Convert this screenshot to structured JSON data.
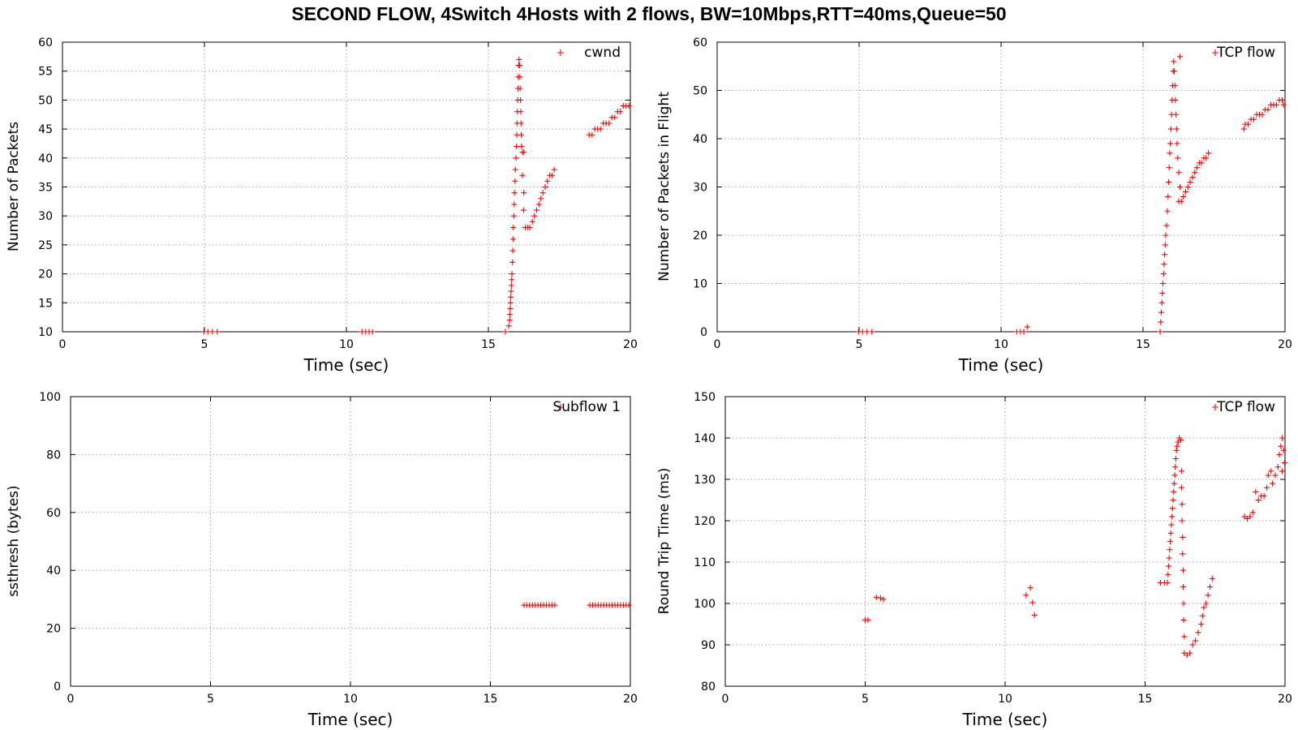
{
  "title": "SECOND FLOW, 4Switch 4Hosts with 2 flows, BW=10Mbps,RTT=40ms,Queue=50",
  "colors": {
    "series": "#ff0000",
    "grid": "#a0a0a0",
    "frame": "#000000"
  },
  "chart_data": [
    {
      "id": "cwnd",
      "type": "scatter",
      "title": "",
      "xlabel": "Time (sec)",
      "ylabel": "Number of Packets",
      "xlim": [
        0,
        20
      ],
      "ylim": [
        10,
        60
      ],
      "xticks": [
        0,
        5,
        10,
        15,
        20
      ],
      "yticks": [
        10,
        15,
        20,
        25,
        30,
        35,
        40,
        45,
        50,
        55,
        60
      ],
      "legend": "top-right",
      "series": [
        {
          "name": "cwnd",
          "points": [
            [
              4.98,
              10
            ],
            [
              5.12,
              10
            ],
            [
              5.28,
              10
            ],
            [
              5.45,
              10
            ],
            [
              10.55,
              10
            ],
            [
              10.68,
              10
            ],
            [
              10.8,
              10
            ],
            [
              10.92,
              10
            ],
            [
              15.6,
              10
            ],
            [
              15.72,
              11
            ],
            [
              15.75,
              12
            ],
            [
              15.76,
              13
            ],
            [
              15.77,
              14
            ],
            [
              15.78,
              15
            ],
            [
              15.79,
              16
            ],
            [
              15.8,
              17
            ],
            [
              15.81,
              18
            ],
            [
              15.82,
              19
            ],
            [
              15.83,
              20
            ],
            [
              15.85,
              22
            ],
            [
              15.86,
              24
            ],
            [
              15.87,
              26
            ],
            [
              15.88,
              28
            ],
            [
              15.9,
              30
            ],
            [
              15.91,
              32
            ],
            [
              15.92,
              34
            ],
            [
              15.94,
              36
            ],
            [
              15.95,
              38
            ],
            [
              15.97,
              40
            ],
            [
              15.99,
              42
            ],
            [
              16.0,
              44
            ],
            [
              16.01,
              46
            ],
            [
              16.02,
              48
            ],
            [
              16.03,
              50
            ],
            [
              16.04,
              52
            ],
            [
              16.05,
              54
            ],
            [
              16.06,
              56
            ],
            [
              16.08,
              57
            ],
            [
              16.1,
              56
            ],
            [
              16.11,
              54
            ],
            [
              16.12,
              52
            ],
            [
              16.13,
              50
            ],
            [
              16.14,
              48
            ],
            [
              16.15,
              46
            ],
            [
              16.16,
              44
            ],
            [
              16.17,
              42
            ],
            [
              16.2,
              41
            ],
            [
              16.25,
              41
            ],
            [
              16.2,
              37
            ],
            [
              16.25,
              34
            ],
            [
              16.24,
              31
            ],
            [
              16.3,
              28
            ],
            [
              16.38,
              28
            ],
            [
              16.46,
              28
            ],
            [
              16.55,
              29
            ],
            [
              16.62,
              30
            ],
            [
              16.7,
              31
            ],
            [
              16.78,
              32
            ],
            [
              16.85,
              33
            ],
            [
              16.92,
              34
            ],
            [
              17.0,
              35
            ],
            [
              17.08,
              36
            ],
            [
              17.16,
              37
            ],
            [
              17.24,
              37
            ],
            [
              17.32,
              38
            ],
            [
              18.55,
              44
            ],
            [
              18.65,
              44
            ],
            [
              18.75,
              45
            ],
            [
              18.85,
              45
            ],
            [
              18.95,
              45
            ],
            [
              19.05,
              46
            ],
            [
              19.15,
              46
            ],
            [
              19.25,
              46
            ],
            [
              19.35,
              47
            ],
            [
              19.45,
              47
            ],
            [
              19.55,
              48
            ],
            [
              19.65,
              48
            ],
            [
              19.75,
              49
            ],
            [
              19.85,
              49
            ],
            [
              19.95,
              49
            ]
          ]
        }
      ]
    },
    {
      "id": "packets-in-flight",
      "type": "scatter",
      "title": "",
      "xlabel": "Time (sec)",
      "ylabel": "Number of Packets in Flight",
      "xlim": [
        0,
        20
      ],
      "ylim": [
        0,
        60
      ],
      "xticks": [
        0,
        5,
        10,
        15,
        20
      ],
      "yticks": [
        0,
        10,
        20,
        30,
        40,
        50,
        60
      ],
      "legend": "top-right",
      "series": [
        {
          "name": "TCP flow",
          "points": [
            [
              4.98,
              0
            ],
            [
              5.12,
              0
            ],
            [
              5.28,
              0
            ],
            [
              5.45,
              0
            ],
            [
              10.55,
              0
            ],
            [
              10.68,
              0
            ],
            [
              10.8,
              0
            ],
            [
              10.92,
              1
            ],
            [
              15.6,
              0
            ],
            [
              15.62,
              2
            ],
            [
              15.64,
              4
            ],
            [
              15.66,
              6
            ],
            [
              15.68,
              8
            ],
            [
              15.7,
              10
            ],
            [
              15.72,
              12
            ],
            [
              15.74,
              14
            ],
            [
              15.76,
              16
            ],
            [
              15.78,
              18
            ],
            [
              15.8,
              20
            ],
            [
              15.83,
              22
            ],
            [
              15.86,
              25
            ],
            [
              15.88,
              28
            ],
            [
              15.9,
              31
            ],
            [
              15.92,
              34
            ],
            [
              15.94,
              37
            ],
            [
              15.96,
              39
            ],
            [
              15.98,
              42
            ],
            [
              16.0,
              45
            ],
            [
              16.02,
              48
            ],
            [
              16.04,
              51
            ],
            [
              16.06,
              54
            ],
            [
              16.08,
              56
            ],
            [
              16.1,
              54
            ],
            [
              16.12,
              51
            ],
            [
              16.14,
              48
            ],
            [
              16.16,
              45
            ],
            [
              16.18,
              42
            ],
            [
              16.2,
              39
            ],
            [
              16.22,
              36
            ],
            [
              16.26,
              33
            ],
            [
              16.3,
              30
            ],
            [
              16.26,
              27
            ],
            [
              16.35,
              27
            ],
            [
              16.42,
              28
            ],
            [
              16.5,
              29
            ],
            [
              16.58,
              30
            ],
            [
              16.66,
              31
            ],
            [
              16.74,
              32
            ],
            [
              16.82,
              33
            ],
            [
              16.9,
              34
            ],
            [
              16.98,
              35
            ],
            [
              17.06,
              35
            ],
            [
              17.14,
              36
            ],
            [
              17.22,
              36
            ],
            [
              17.3,
              37
            ],
            [
              18.55,
              42
            ],
            [
              18.6,
              43
            ],
            [
              18.7,
              43
            ],
            [
              18.8,
              44
            ],
            [
              18.9,
              44
            ],
            [
              19.0,
              45
            ],
            [
              19.1,
              45
            ],
            [
              19.2,
              45
            ],
            [
              19.3,
              46
            ],
            [
              19.4,
              46
            ],
            [
              19.5,
              47
            ],
            [
              19.6,
              47
            ],
            [
              19.7,
              47
            ],
            [
              19.8,
              48
            ],
            [
              19.9,
              48
            ],
            [
              19.95,
              47
            ],
            [
              16.3,
              57
            ]
          ]
        }
      ]
    },
    {
      "id": "ssthresh",
      "type": "scatter",
      "title": "",
      "xlabel": "Time (sec)",
      "ylabel": "ssthresh (bytes)",
      "xlim": [
        0,
        20
      ],
      "ylim": [
        0,
        100
      ],
      "xticks": [
        0,
        5,
        10,
        15,
        20
      ],
      "yticks": [
        0,
        20,
        40,
        60,
        80,
        100
      ],
      "legend": "top-right",
      "series": [
        {
          "name": "Subflow 1",
          "points": [
            [
              16.2,
              28
            ],
            [
              16.3,
              28
            ],
            [
              16.4,
              28
            ],
            [
              16.5,
              28
            ],
            [
              16.6,
              28
            ],
            [
              16.7,
              28
            ],
            [
              16.8,
              28
            ],
            [
              16.9,
              28
            ],
            [
              17.0,
              28
            ],
            [
              17.1,
              28
            ],
            [
              17.2,
              28
            ],
            [
              17.3,
              28
            ],
            [
              18.55,
              28
            ],
            [
              18.65,
              28
            ],
            [
              18.75,
              28
            ],
            [
              18.85,
              28
            ],
            [
              18.95,
              28
            ],
            [
              19.05,
              28
            ],
            [
              19.15,
              28
            ],
            [
              19.25,
              28
            ],
            [
              19.35,
              28
            ],
            [
              19.45,
              28
            ],
            [
              19.55,
              28
            ],
            [
              19.65,
              28
            ],
            [
              19.75,
              28
            ],
            [
              19.85,
              28
            ],
            [
              19.95,
              28
            ]
          ]
        }
      ]
    },
    {
      "id": "rtt",
      "type": "scatter",
      "title": "",
      "xlabel": "Time (sec)",
      "ylabel": "Round Trip Time (ms)",
      "xlim": [
        0,
        20
      ],
      "ylim": [
        80,
        150
      ],
      "xticks": [
        0,
        5,
        10,
        15,
        20
      ],
      "yticks": [
        80,
        90,
        100,
        110,
        120,
        130,
        140,
        150
      ],
      "legend": "top-right",
      "series": [
        {
          "name": "TCP flow",
          "points": [
            [
              5.0,
              96
            ],
            [
              5.1,
              96
            ],
            [
              5.4,
              101.5
            ],
            [
              5.55,
              101.3
            ],
            [
              5.65,
              101
            ],
            [
              10.75,
              102
            ],
            [
              10.9,
              103.8
            ],
            [
              10.98,
              100.2
            ],
            [
              11.05,
              97.2
            ],
            [
              15.55,
              105
            ],
            [
              15.7,
              105
            ],
            [
              15.8,
              105
            ],
            [
              15.82,
              107
            ],
            [
              15.84,
              109
            ],
            [
              15.86,
              111
            ],
            [
              15.88,
              113
            ],
            [
              15.9,
              115
            ],
            [
              15.92,
              117
            ],
            [
              15.94,
              119
            ],
            [
              15.96,
              121
            ],
            [
              15.98,
              123
            ],
            [
              16.0,
              125
            ],
            [
              16.02,
              127
            ],
            [
              16.04,
              129
            ],
            [
              16.06,
              131
            ],
            [
              16.08,
              133
            ],
            [
              16.1,
              135
            ],
            [
              16.12,
              137
            ],
            [
              16.14,
              138
            ],
            [
              16.18,
              139
            ],
            [
              16.22,
              140
            ],
            [
              16.28,
              139.5
            ],
            [
              16.3,
              132
            ],
            [
              16.3,
              128
            ],
            [
              16.32,
              124
            ],
            [
              16.32,
              120
            ],
            [
              16.34,
              116
            ],
            [
              16.34,
              112
            ],
            [
              16.36,
              108
            ],
            [
              16.36,
              104
            ],
            [
              16.38,
              100
            ],
            [
              16.38,
              96
            ],
            [
              16.4,
              92
            ],
            [
              16.4,
              88
            ],
            [
              16.5,
              87.5
            ],
            [
              16.6,
              88
            ],
            [
              16.7,
              90
            ],
            [
              16.8,
              91
            ],
            [
              16.9,
              93
            ],
            [
              17.0,
              95
            ],
            [
              17.05,
              97
            ],
            [
              17.1,
              99
            ],
            [
              17.18,
              100
            ],
            [
              17.25,
              102
            ],
            [
              17.32,
              104
            ],
            [
              17.4,
              106
            ],
            [
              18.55,
              121
            ],
            [
              18.65,
              120.5
            ],
            [
              18.75,
              121
            ],
            [
              18.85,
              122
            ],
            [
              18.95,
              127
            ],
            [
              19.05,
              125
            ],
            [
              19.15,
              126
            ],
            [
              19.25,
              126
            ],
            [
              19.35,
              128
            ],
            [
              19.4,
              131
            ],
            [
              19.5,
              132
            ],
            [
              19.55,
              129
            ],
            [
              19.65,
              131
            ],
            [
              19.75,
              133
            ],
            [
              19.8,
              136
            ],
            [
              19.85,
              138
            ],
            [
              19.9,
              140
            ],
            [
              19.95,
              137
            ],
            [
              19.98,
              134
            ],
            [
              19.9,
              132
            ]
          ]
        }
      ]
    }
  ]
}
